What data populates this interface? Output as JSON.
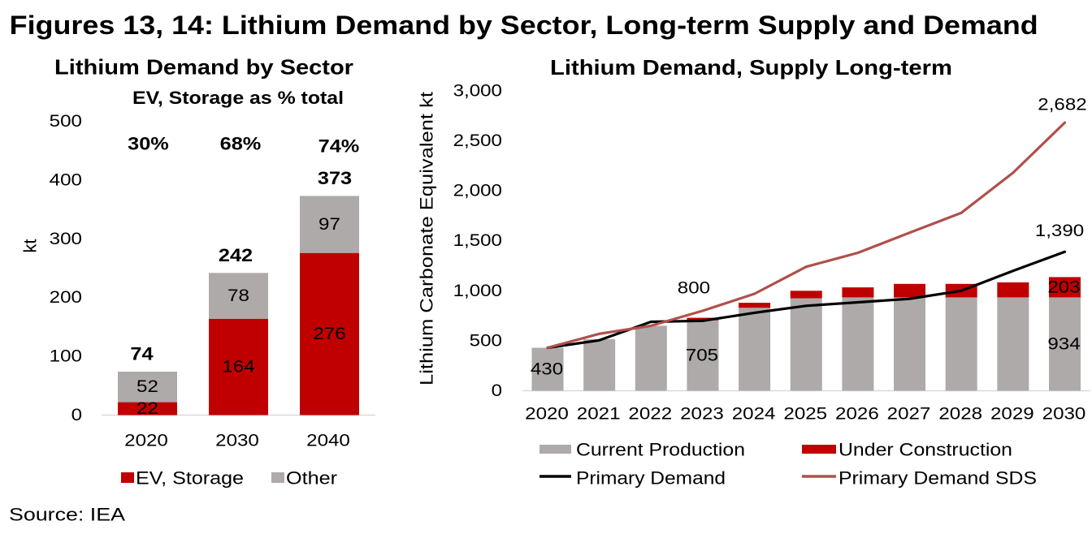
{
  "figure": {
    "title": "Figures 13, 14: Lithium Demand by Sector, Long-term Supply and Demand",
    "source": "Source: IEA"
  },
  "chart_data": [
    {
      "type": "bar",
      "stacked": true,
      "title": "Lithium Demand by Sector",
      "subtitle": "EV, Storage as % total",
      "xlabel": "",
      "ylabel": "kt",
      "ylim": [
        0,
        500
      ],
      "yticks": [
        0,
        100,
        200,
        300,
        400,
        500
      ],
      "ytick_labels": [
        "0",
        "100",
        "200",
        "300",
        "400",
        "500"
      ],
      "grid": false,
      "legend": "bottom",
      "categories": [
        "2020",
        "2030",
        "2040"
      ],
      "series": [
        {
          "name": "EV, Storage",
          "color": "#c00000",
          "values": [
            22,
            164,
            276
          ]
        },
        {
          "name": "Other",
          "color": "#aeaaaa",
          "values": [
            52,
            78,
            97
          ]
        }
      ],
      "totals": [
        74,
        242,
        373
      ],
      "share_labels": [
        "30%",
        "68%",
        "74%"
      ]
    },
    {
      "type": "bar+line",
      "stacked": true,
      "title": "Lithium Demand, Supply Long-term",
      "xlabel": "",
      "ylabel": "Lithium Carbonate Equivalent kt",
      "ylim": [
        0,
        3000
      ],
      "yticks": [
        0,
        500,
        1000,
        1500,
        2000,
        2500,
        3000
      ],
      "ytick_labels": [
        "0",
        "500",
        "1,000",
        "1,500",
        "2,000",
        "2,500",
        "3,000"
      ],
      "grid": false,
      "legend": "bottom",
      "categories": [
        "2020",
        "2021",
        "2022",
        "2023",
        "2024",
        "2025",
        "2026",
        "2027",
        "2028",
        "2029",
        "2030"
      ],
      "series": [
        {
          "name": "Current Production",
          "type": "bar",
          "color": "#aeaaaa",
          "values": [
            430,
            515,
            650,
            705,
            830,
            925,
            934,
            934,
            934,
            934,
            934
          ]
        },
        {
          "name": "Under Construction",
          "type": "bar",
          "color": "#c00000",
          "values": [
            0,
            0,
            0,
            25,
            50,
            75,
            100,
            135,
            135,
            150,
            203
          ]
        },
        {
          "name": "Primary Demand",
          "type": "line",
          "color": "#000000",
          "values": [
            430,
            505,
            690,
            700,
            780,
            850,
            885,
            920,
            1000,
            1200,
            1390
          ]
        },
        {
          "name": "Primary Demand SDS",
          "type": "line",
          "color": "#b0504c",
          "values": [
            430,
            570,
            650,
            800,
            970,
            1240,
            1380,
            1580,
            1780,
            2180,
            2682
          ]
        }
      ],
      "annotations": [
        {
          "series": "Current Production",
          "category": "2020",
          "text": "430"
        },
        {
          "series": "Current Production",
          "category": "2023",
          "text": "705"
        },
        {
          "series": "Primary Demand SDS",
          "category": "2023",
          "text": "800"
        },
        {
          "series": "Current Production",
          "category": "2030",
          "text": "934"
        },
        {
          "series": "Under Construction",
          "category": "2030",
          "text": "203"
        },
        {
          "series": "Primary Demand SDS",
          "category": "2030",
          "text": "2,682"
        },
        {
          "series": "Primary Demand",
          "category": "2030",
          "text": "1,390"
        }
      ]
    }
  ]
}
